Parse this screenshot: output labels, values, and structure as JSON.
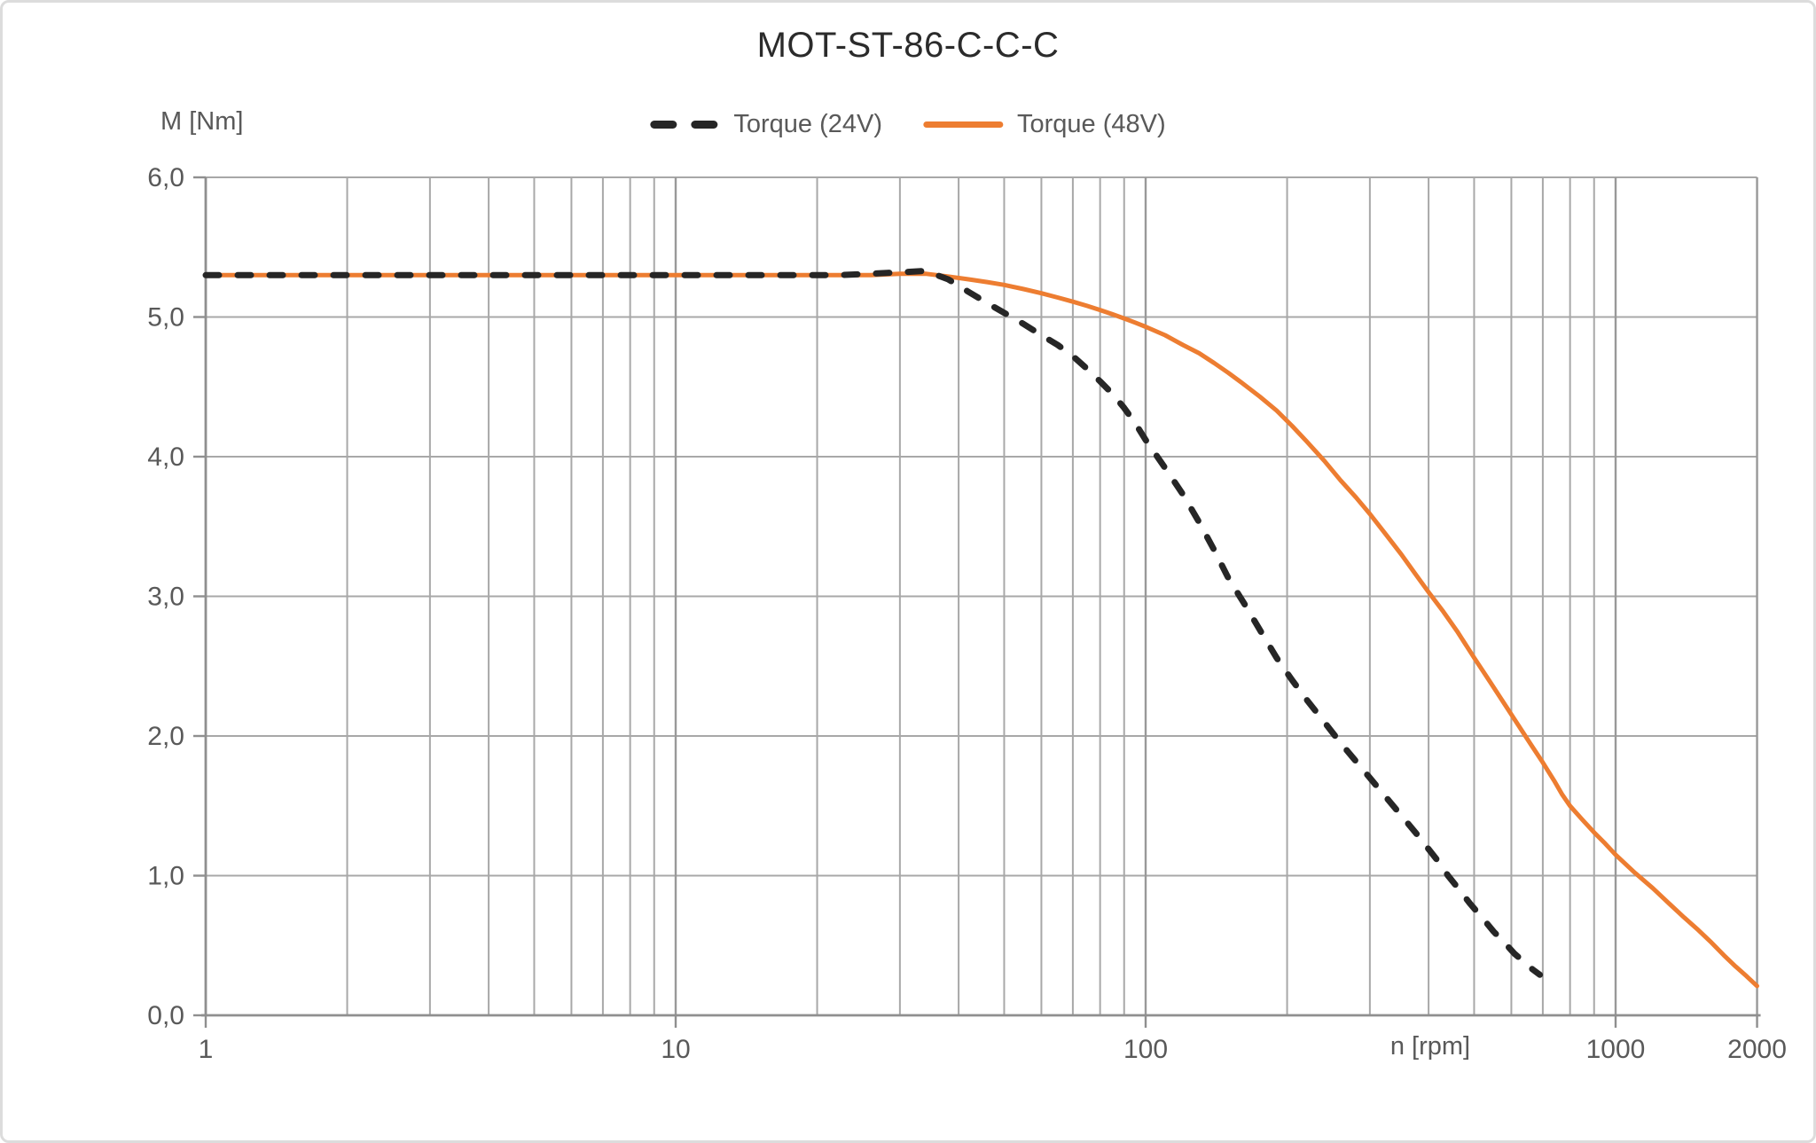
{
  "chart_data": {
    "type": "line",
    "title": "MOT-ST-86-C-C-C",
    "grid": "on",
    "legend_position": "top-center",
    "x_axis": {
      "label": "n [rpm]",
      "scale": "log",
      "min": 1,
      "max": 2000,
      "ticks": [
        1,
        10,
        100,
        1000,
        2000
      ],
      "tick_labels": [
        "1",
        "10",
        "100",
        "1000",
        "2000"
      ]
    },
    "y_axis": {
      "label": "M [Nm]",
      "min": 0,
      "max": 6,
      "tick_step": 1,
      "tick_values": [
        0,
        1,
        2,
        3,
        4,
        5,
        6
      ],
      "tick_labels": [
        "0,0",
        "1,0",
        "2,0",
        "3,0",
        "4,0",
        "5,0",
        "6,0"
      ]
    },
    "colors": {
      "torque_24v": "#262626",
      "torque_48v": "#ED7D31",
      "gridline": "#A8A8A8",
      "gridline_major": "#999999",
      "axis": "#8F8F8F",
      "tick_label": "#595959",
      "title": "#2B2B2B"
    },
    "series": [
      {
        "name": "Torque (24V)",
        "style": "dashed",
        "color": "#262626",
        "points": [
          [
            1,
            5.3
          ],
          [
            2,
            5.3
          ],
          [
            3,
            5.3
          ],
          [
            4,
            5.3
          ],
          [
            6,
            5.3
          ],
          [
            8,
            5.3
          ],
          [
            10,
            5.3
          ],
          [
            14,
            5.3
          ],
          [
            18,
            5.3
          ],
          [
            22,
            5.3
          ],
          [
            26,
            5.31
          ],
          [
            30,
            5.32
          ],
          [
            34,
            5.33
          ],
          [
            38,
            5.27
          ],
          [
            42,
            5.18
          ],
          [
            46,
            5.1
          ],
          [
            50,
            5.03
          ],
          [
            55,
            4.95
          ],
          [
            60,
            4.87
          ],
          [
            65,
            4.8
          ],
          [
            70,
            4.72
          ],
          [
            75,
            4.63
          ],
          [
            80,
            4.54
          ],
          [
            85,
            4.45
          ],
          [
            90,
            4.35
          ],
          [
            95,
            4.24
          ],
          [
            100,
            4.12
          ],
          [
            110,
            3.92
          ],
          [
            120,
            3.73
          ],
          [
            130,
            3.53
          ],
          [
            140,
            3.33
          ],
          [
            150,
            3.13
          ],
          [
            162,
            2.95
          ],
          [
            175,
            2.76
          ],
          [
            190,
            2.56
          ],
          [
            205,
            2.4
          ],
          [
            220,
            2.26
          ],
          [
            240,
            2.1
          ],
          [
            260,
            1.95
          ],
          [
            280,
            1.82
          ],
          [
            300,
            1.7
          ],
          [
            325,
            1.56
          ],
          [
            350,
            1.43
          ],
          [
            375,
            1.31
          ],
          [
            400,
            1.19
          ],
          [
            420,
            1.1
          ],
          [
            440,
            1.0
          ],
          [
            465,
            0.9
          ],
          [
            490,
            0.8
          ],
          [
            520,
            0.7
          ],
          [
            550,
            0.6
          ],
          [
            580,
            0.52
          ],
          [
            610,
            0.44
          ],
          [
            640,
            0.38
          ],
          [
            665,
            0.33
          ],
          [
            690,
            0.29
          ]
        ]
      },
      {
        "name": "Torque (48V)",
        "style": "solid",
        "color": "#ED7D31",
        "points": [
          [
            1,
            5.3
          ],
          [
            2,
            5.3
          ],
          [
            3,
            5.3
          ],
          [
            4,
            5.3
          ],
          [
            6,
            5.3
          ],
          [
            8,
            5.3
          ],
          [
            10,
            5.3
          ],
          [
            14,
            5.3
          ],
          [
            18,
            5.3
          ],
          [
            22,
            5.3
          ],
          [
            26,
            5.3
          ],
          [
            30,
            5.31
          ],
          [
            34,
            5.31
          ],
          [
            38,
            5.29
          ],
          [
            42,
            5.27
          ],
          [
            46,
            5.25
          ],
          [
            50,
            5.23
          ],
          [
            55,
            5.2
          ],
          [
            60,
            5.17
          ],
          [
            65,
            5.14
          ],
          [
            70,
            5.11
          ],
          [
            75,
            5.08
          ],
          [
            80,
            5.05
          ],
          [
            85,
            5.02
          ],
          [
            90,
            4.99
          ],
          [
            95,
            4.96
          ],
          [
            100,
            4.93
          ],
          [
            110,
            4.87
          ],
          [
            120,
            4.8
          ],
          [
            130,
            4.74
          ],
          [
            140,
            4.67
          ],
          [
            150,
            4.6
          ],
          [
            160,
            4.53
          ],
          [
            175,
            4.43
          ],
          [
            190,
            4.33
          ],
          [
            205,
            4.22
          ],
          [
            220,
            4.11
          ],
          [
            240,
            3.97
          ],
          [
            260,
            3.83
          ],
          [
            280,
            3.71
          ],
          [
            300,
            3.59
          ],
          [
            325,
            3.44
          ],
          [
            350,
            3.3
          ],
          [
            375,
            3.16
          ],
          [
            400,
            3.03
          ],
          [
            430,
            2.89
          ],
          [
            460,
            2.75
          ],
          [
            500,
            2.56
          ],
          [
            540,
            2.39
          ],
          [
            580,
            2.23
          ],
          [
            620,
            2.08
          ],
          [
            660,
            1.94
          ],
          [
            700,
            1.81
          ],
          [
            740,
            1.68
          ],
          [
            770,
            1.58
          ],
          [
            800,
            1.5
          ],
          [
            850,
            1.4
          ],
          [
            900,
            1.31
          ],
          [
            950,
            1.23
          ],
          [
            1000,
            1.15
          ],
          [
            1100,
            1.02
          ],
          [
            1200,
            0.91
          ],
          [
            1300,
            0.8
          ],
          [
            1400,
            0.7
          ],
          [
            1500,
            0.61
          ],
          [
            1600,
            0.52
          ],
          [
            1700,
            0.43
          ],
          [
            1800,
            0.35
          ],
          [
            1900,
            0.28
          ],
          [
            2000,
            0.21
          ]
        ]
      }
    ]
  }
}
